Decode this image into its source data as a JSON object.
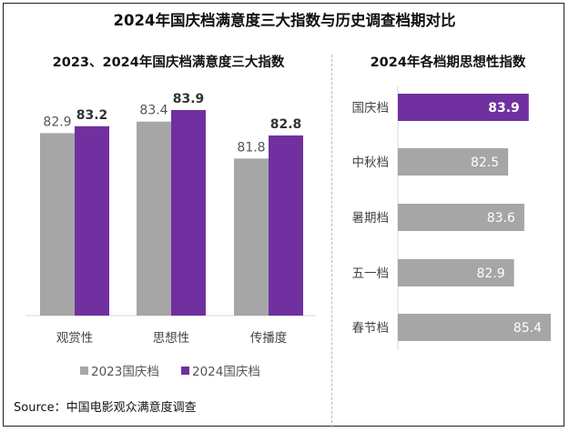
{
  "title": "2024年国庆档满意度三大指数与历史调查档期对比",
  "source": "Source：中国电影观众满意度调查",
  "colors": {
    "gray": "#a6a6a6",
    "purple": "#7030a0"
  },
  "chart_data": [
    {
      "type": "bar",
      "title": "2023、2024年国庆档满意度三大指数",
      "categories": [
        "观赏性",
        "思想性",
        "传播度"
      ],
      "series": [
        {
          "name": "2023国庆档",
          "values": [
            82.9,
            83.4,
            81.8
          ],
          "color": "#a6a6a6"
        },
        {
          "name": "2024国庆档",
          "values": [
            83.2,
            83.9,
            82.8
          ],
          "color": "#7030a0"
        }
      ],
      "ylim": [
        75,
        85
      ],
      "grid": false,
      "legend": "bottom",
      "xlabel": "",
      "ylabel": ""
    },
    {
      "type": "bar",
      "orientation": "horizontal",
      "title": "2024年各档期思想性指数",
      "categories": [
        "国庆档",
        "中秋档",
        "暑期档",
        "五一档",
        "春节档"
      ],
      "values": [
        83.9,
        82.5,
        83.6,
        82.9,
        85.4
      ],
      "colors": [
        "#7030a0",
        "#a6a6a6",
        "#a6a6a6",
        "#a6a6a6",
        "#a6a6a6"
      ],
      "xlim": [
        75,
        86
      ],
      "grid": false,
      "xlabel": "",
      "ylabel": ""
    }
  ]
}
